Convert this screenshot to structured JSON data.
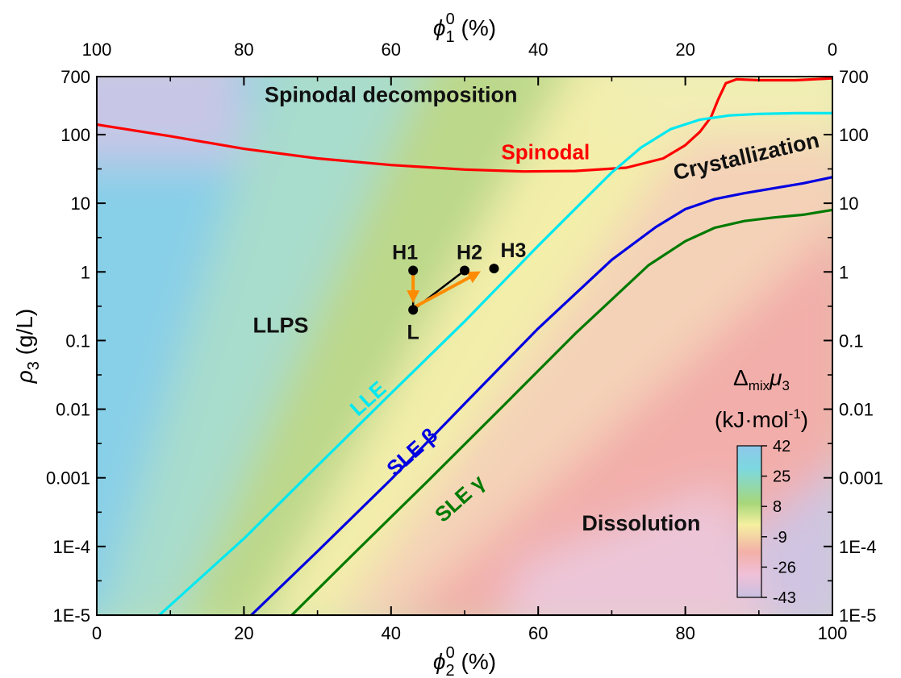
{
  "chart_data": {
    "type": "line",
    "axes": {
      "bottom": {
        "symbol": "ϕ",
        "sup": "0",
        "sub": "2",
        "unit": " (%)",
        "range": [
          0,
          100
        ],
        "ticks": [
          0,
          20,
          40,
          60,
          80,
          100
        ]
      },
      "top": {
        "symbol": "ϕ",
        "sup": "0",
        "sub": "1",
        "unit": " (%)",
        "range": [
          100,
          0
        ],
        "ticks": [
          100,
          80,
          60,
          40,
          20,
          0
        ]
      },
      "left": {
        "symbol": "ρ",
        "sub": "3",
        "unit": " (g/L)",
        "scale": "log",
        "range": [
          1e-05,
          700
        ],
        "ticks": [
          1e-05,
          0.0001,
          0.001,
          0.01,
          0.1,
          1,
          10,
          100,
          700
        ],
        "tick_labels": [
          "1E-5",
          "1E-4",
          "0.001",
          "0.01",
          "0.1",
          "1",
          "10",
          "100",
          "700"
        ]
      },
      "right": {
        "scale": "log",
        "ticks": [
          1e-05,
          0.0001,
          0.001,
          0.01,
          0.1,
          1,
          10,
          100,
          700
        ],
        "tick_labels": [
          "1E-5",
          "1E-4",
          "0.001",
          "0.01",
          "0.1",
          "1",
          "10",
          "100",
          "700"
        ]
      }
    },
    "series": [
      {
        "name": "Spinodal",
        "color": "#ff0000",
        "x": [
          0,
          10,
          20,
          30,
          40,
          50,
          58,
          65,
          72,
          77,
          80,
          82,
          83.5,
          84.5,
          85.5,
          87,
          90,
          95,
          100
        ],
        "y": [
          140,
          95,
          62,
          45,
          36,
          31,
          29,
          29.5,
          33,
          45,
          70,
          110,
          180,
          330,
          560,
          640,
          620,
          620,
          660
        ]
      },
      {
        "name": "LLE",
        "color": "#00e8f0",
        "x": [
          8.5,
          20,
          30,
          40,
          50,
          60,
          66,
          70,
          74,
          78,
          82,
          86,
          90,
          95,
          100
        ],
        "y": [
          1e-05,
          0.00013,
          0.0015,
          0.017,
          0.19,
          2.4,
          10.5,
          28,
          65,
          120,
          165,
          190,
          200,
          205,
          205
        ]
      },
      {
        "name": "SLE β",
        "color": "#0000e0",
        "x": [
          21,
          30,
          40,
          50,
          60,
          70,
          76,
          80,
          84,
          88,
          92,
          96,
          100
        ],
        "y": [
          1e-05,
          8.5e-05,
          0.00095,
          0.012,
          0.15,
          1.5,
          4.5,
          8.2,
          11.5,
          14,
          16.5,
          19.5,
          24
        ]
      },
      {
        "name": "SLE γ",
        "color": "#007a00",
        "x": [
          26.5,
          35,
          45,
          55,
          65,
          75,
          80,
          84,
          88,
          92,
          96,
          100
        ],
        "y": [
          1e-05,
          8e-05,
          0.0009,
          0.0105,
          0.125,
          1.25,
          2.8,
          4.4,
          5.5,
          6.2,
          6.8,
          8
        ]
      }
    ],
    "points": [
      {
        "label": "H1",
        "x": 43,
        "y": 1.05
      },
      {
        "label": "H2",
        "x": 50,
        "y": 1.05
      },
      {
        "label": "H3",
        "x": 54,
        "y": 1.12
      },
      {
        "label": "L",
        "x": 43,
        "y": 0.28
      }
    ],
    "tie_lines": [
      [
        "H1",
        "L"
      ],
      [
        "H2",
        "L"
      ]
    ],
    "arrows": [
      {
        "from": [
          43,
          1.0
        ],
        "to": [
          43,
          0.35
        ],
        "color": "#ff8c00"
      },
      {
        "from": [
          43,
          0.3
        ],
        "to": [
          52.2,
          1.02
        ],
        "color": "#ff8c00"
      }
    ],
    "regions": [
      {
        "label": "Spinodal decomposition",
        "x": 40,
        "y": 300
      },
      {
        "label": "LLPS",
        "x": 25,
        "y": 0.13
      },
      {
        "label": "Dissolution",
        "x": 74,
        "y": 0.00017
      },
      {
        "label": "Crystallization",
        "x": 88.5,
        "y": 38,
        "rotate": -13
      }
    ],
    "curve_labels": [
      {
        "text": "Spinodal",
        "x": 61,
        "y": 44,
        "color": "#ff0000",
        "rotate": 0
      },
      {
        "text": "LLE",
        "x": 37.5,
        "y": 0.012,
        "color": "#00e8f0",
        "rotate": -42
      },
      {
        "text": "SLE β",
        "x": 43.5,
        "y": 0.002,
        "color": "#0000e0",
        "rotate": -42
      },
      {
        "text": "SLE γ",
        "x": 50,
        "y": 0.00042,
        "color": "#007a00",
        "rotate": -42
      }
    ],
    "colorbar": {
      "title_main": "Δ",
      "title_sub": "mix",
      "title_var": "μ",
      "title_var_sub": "3",
      "unit_prefix": "(kJ·mol",
      "unit_sup": "-1",
      "unit_suffix": ")",
      "ticks": [
        "42",
        "25",
        "8",
        "-9",
        "-26",
        "-43"
      ],
      "colors": [
        "#8ec8ea",
        "#7cd8e0",
        "#a8d77a",
        "#f5f0a0",
        "#f3b0a8",
        "#f0c0d8",
        "#c8c0e0"
      ]
    }
  }
}
